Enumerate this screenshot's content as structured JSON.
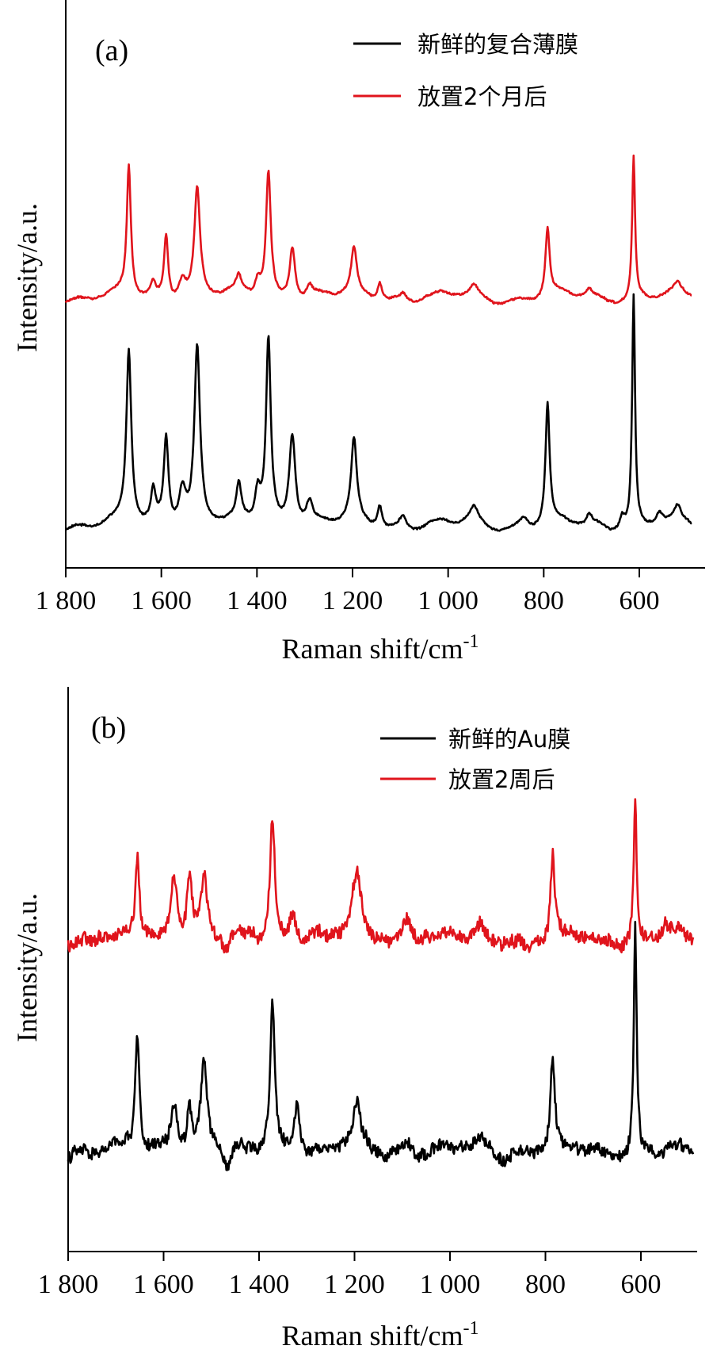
{
  "colors": {
    "fresh": "#000000",
    "aged": "#e0141c",
    "axis": "#000000"
  },
  "chart_data": [
    {
      "type": "line",
      "panel_label": "(a)",
      "xlabel": "Raman shift/cm",
      "xlabel_sup": "-1",
      "ylabel": "Intensity/a.u.",
      "xlim": [
        1800,
        490
      ],
      "x_reversed": true,
      "ylim": [
        0,
        100
      ],
      "xticks": [
        1800,
        1600,
        1400,
        1200,
        1000,
        800,
        600
      ],
      "xtick_labels": [
        "1 800",
        "1 600",
        "1 400",
        "1 200",
        "1 000",
        "800",
        "600"
      ],
      "y_ticks_shown": false,
      "grid": false,
      "legend_position": "top-right",
      "series": [
        {
          "name": "新鲜的复合薄膜",
          "color": "#000000",
          "baseline": 7,
          "noise": 0.35,
          "peaks": [
            {
              "x": 1668,
              "h": 76,
              "w": 6
            },
            {
              "x": 1617,
              "h": 14,
              "w": 6
            },
            {
              "x": 1590,
              "h": 38,
              "w": 6
            },
            {
              "x": 1556,
              "h": 17,
              "w": 9
            },
            {
              "x": 1525,
              "h": 78,
              "w": 7
            },
            {
              "x": 1438,
              "h": 15,
              "w": 6
            },
            {
              "x": 1398,
              "h": 14,
              "w": 7
            },
            {
              "x": 1376,
              "h": 82,
              "w": 6
            },
            {
              "x": 1326,
              "h": 41,
              "w": 8
            },
            {
              "x": 1290,
              "h": 9,
              "w": 8
            },
            {
              "x": 1197,
              "h": 36,
              "w": 7
            },
            {
              "x": 1143,
              "h": 10,
              "w": 6
            },
            {
              "x": 1094,
              "h": 5,
              "w": 8
            },
            {
              "x": 946,
              "h": 7,
              "w": 10
            },
            {
              "x": 842,
              "h": 4,
              "w": 10
            },
            {
              "x": 792,
              "h": 53,
              "w": 5
            },
            {
              "x": 705,
              "h": 4,
              "w": 6
            },
            {
              "x": 636,
              "h": 6,
              "w": 6
            },
            {
              "x": 612,
              "h": 102,
              "w": 3.6
            },
            {
              "x": 558,
              "h": 5,
              "w": 8
            },
            {
              "x": 520,
              "h": 6,
              "w": 8
            }
          ]
        },
        {
          "name": "放置2个月后",
          "color": "#e0141c",
          "baseline": 108,
          "noise": 0.35,
          "peaks": [
            {
              "x": 1668,
              "h": 57,
              "w": 5
            },
            {
              "x": 1617,
              "h": 6,
              "w": 6
            },
            {
              "x": 1590,
              "h": 28,
              "w": 5
            },
            {
              "x": 1556,
              "h": 9,
              "w": 9
            },
            {
              "x": 1525,
              "h": 48,
              "w": 7
            },
            {
              "x": 1438,
              "h": 7,
              "w": 6
            },
            {
              "x": 1398,
              "h": 7,
              "w": 7
            },
            {
              "x": 1376,
              "h": 56,
              "w": 6
            },
            {
              "x": 1326,
              "h": 24,
              "w": 7
            },
            {
              "x": 1290,
              "h": 5,
              "w": 7
            },
            {
              "x": 1197,
              "h": 20,
              "w": 7
            },
            {
              "x": 1143,
              "h": 8,
              "w": 6
            },
            {
              "x": 1094,
              "h": 3,
              "w": 7
            },
            {
              "x": 946,
              "h": 4,
              "w": 9
            },
            {
              "x": 792,
              "h": 30,
              "w": 5
            },
            {
              "x": 705,
              "h": 3,
              "w": 6
            },
            {
              "x": 612,
              "h": 63,
              "w": 3.6
            },
            {
              "x": 520,
              "h": 4,
              "w": 8
            }
          ]
        }
      ]
    },
    {
      "type": "line",
      "panel_label": "(b)",
      "xlabel": "Raman shift/cm",
      "xlabel_sup": "-1",
      "ylabel": "Intensity/a.u.",
      "xlim": [
        1800,
        490
      ],
      "x_reversed": true,
      "ylim": [
        0,
        100
      ],
      "xticks": [
        1800,
        1600,
        1400,
        1200,
        1000,
        800,
        600
      ],
      "xtick_labels": [
        "1 800",
        "1 600",
        "1 400",
        "1 200",
        "1 000",
        "800",
        "600"
      ],
      "y_ticks_shown": false,
      "grid": false,
      "legend_position": "top-right",
      "series": [
        {
          "name": "新鲜的Au膜",
          "color": "#000000",
          "baseline": 16,
          "noise": 2.4,
          "peaks": [
            {
              "x": 1655,
              "h": 50,
              "w": 5
            },
            {
              "x": 1578,
              "h": 22,
              "w": 8
            },
            {
              "x": 1546,
              "h": 18,
              "w": 6
            },
            {
              "x": 1515,
              "h": 36,
              "w": 8
            },
            {
              "x": 1467,
              "h": -10,
              "w": 8
            },
            {
              "x": 1372,
              "h": 63,
              "w": 6
            },
            {
              "x": 1320,
              "h": 23,
              "w": 7
            },
            {
              "x": 1195,
              "h": 18,
              "w": 10
            },
            {
              "x": 1090,
              "h": 4,
              "w": 10
            },
            {
              "x": 935,
              "h": 4,
              "w": 10
            },
            {
              "x": 785,
              "h": 38,
              "w": 5
            },
            {
              "x": 612,
              "h": 95,
              "w": 3.6
            }
          ]
        },
        {
          "name": "放置2周后",
          "color": "#e0141c",
          "baseline": 105,
          "noise": 2.6,
          "peaks": [
            {
              "x": 1655,
              "h": 35,
              "w": 5
            },
            {
              "x": 1578,
              "h": 28,
              "w": 8
            },
            {
              "x": 1546,
              "h": 26,
              "w": 7
            },
            {
              "x": 1515,
              "h": 24,
              "w": 8
            },
            {
              "x": 1467,
              "h": -6,
              "w": 8
            },
            {
              "x": 1372,
              "h": 52,
              "w": 6
            },
            {
              "x": 1330,
              "h": 13,
              "w": 8
            },
            {
              "x": 1195,
              "h": 24,
              "w": 12
            },
            {
              "x": 1090,
              "h": 10,
              "w": 12
            },
            {
              "x": 935,
              "h": 5,
              "w": 10
            },
            {
              "x": 785,
              "h": 33,
              "w": 5
            },
            {
              "x": 612,
              "h": 60,
              "w": 3.6
            },
            {
              "x": 548,
              "h": 6,
              "w": 6
            }
          ]
        }
      ]
    }
  ]
}
